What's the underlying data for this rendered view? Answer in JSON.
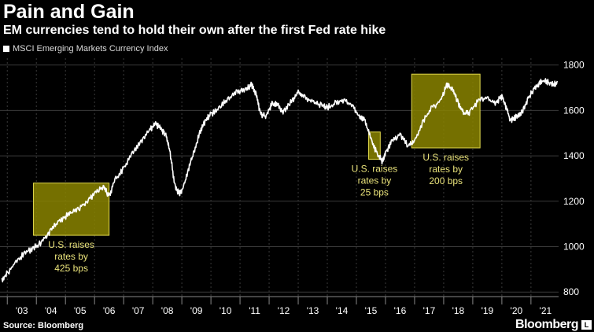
{
  "header": {
    "title": "Pain and Gain",
    "subtitle": "EM currencies tend to hold their own after the first Fed rate hike"
  },
  "footer": {
    "source": "Source: Bloomberg",
    "brand": "Bloomberg",
    "brand_badge": "L"
  },
  "colors": {
    "background": "#000000",
    "line": "#ffffff",
    "highlight_fill": "#8a8400",
    "highlight_border": "#e0d84a",
    "annotation_text": "#e9e27a",
    "grid": "#3a3a3a"
  },
  "chart_data": {
    "type": "line",
    "title": "Pain and Gain",
    "subtitle": "EM currencies tend to hold their own after the first Fed rate hike",
    "legend": [
      "MSCI Emerging Markets Currency Index"
    ],
    "legend_position": "top-left",
    "xlabel": "",
    "ylabel": "",
    "xlim": [
      2002.75,
      2021.95
    ],
    "ylim": [
      780,
      1830
    ],
    "y_ticks": [
      800,
      1000,
      1200,
      1400,
      1600,
      1800
    ],
    "y_axis_side": "right",
    "x_ticks": [
      {
        "label": "'03",
        "x": 2003.5
      },
      {
        "label": "'04",
        "x": 2004.5
      },
      {
        "label": "'05",
        "x": 2005.5
      },
      {
        "label": "'06",
        "x": 2006.5
      },
      {
        "label": "'07",
        "x": 2007.5
      },
      {
        "label": "'08",
        "x": 2008.5
      },
      {
        "label": "'09",
        "x": 2009.5
      },
      {
        "label": "'10",
        "x": 2010.5
      },
      {
        "label": "'11",
        "x": 2011.5
      },
      {
        "label": "'12",
        "x": 2012.5
      },
      {
        "label": "'13",
        "x": 2013.5
      },
      {
        "label": "'14",
        "x": 2014.5
      },
      {
        "label": "'15",
        "x": 2015.5
      },
      {
        "label": "'16",
        "x": 2016.5
      },
      {
        "label": "'17",
        "x": 2017.5
      },
      {
        "label": "'18",
        "x": 2018.5
      },
      {
        "label": "'19",
        "x": 2019.5
      },
      {
        "label": "'20",
        "x": 2020.5
      },
      {
        "label": "'21",
        "x": 2021.5
      }
    ],
    "grid": true,
    "series": [
      {
        "name": "MSCI Emerging Markets Currency Index",
        "x": [
          2002.8,
          2003.0,
          2003.3,
          2003.6,
          2003.9,
          2004.2,
          2004.5,
          2004.8,
          2005.1,
          2005.4,
          2005.7,
          2006.0,
          2006.3,
          2006.5,
          2006.7,
          2007.0,
          2007.3,
          2007.6,
          2007.9,
          2008.1,
          2008.3,
          2008.45,
          2008.6,
          2008.75,
          2008.9,
          2009.0,
          2009.2,
          2009.4,
          2009.6,
          2009.8,
          2010.0,
          2010.3,
          2010.6,
          2010.9,
          2011.2,
          2011.4,
          2011.55,
          2011.7,
          2011.9,
          2012.1,
          2012.3,
          2012.5,
          2012.8,
          2013.0,
          2013.2,
          2013.5,
          2013.8,
          2014.0,
          2014.3,
          2014.6,
          2014.9,
          2015.1,
          2015.3,
          2015.5,
          2015.7,
          2015.9,
          2016.0,
          2016.2,
          2016.5,
          2016.8,
          2017.0,
          2017.3,
          2017.6,
          2017.9,
          2018.1,
          2018.3,
          2018.5,
          2018.7,
          2018.9,
          2019.2,
          2019.5,
          2019.8,
          2020.0,
          2020.15,
          2020.3,
          2020.5,
          2020.7,
          2020.9,
          2021.1,
          2021.3,
          2021.5,
          2021.7,
          2021.9
        ],
        "values": [
          860,
          890,
          940,
          980,
          1000,
          1030,
          1080,
          1120,
          1150,
          1170,
          1200,
          1240,
          1270,
          1230,
          1300,
          1350,
          1420,
          1470,
          1520,
          1550,
          1520,
          1500,
          1420,
          1280,
          1240,
          1250,
          1330,
          1420,
          1500,
          1560,
          1590,
          1620,
          1660,
          1690,
          1700,
          1720,
          1680,
          1590,
          1580,
          1640,
          1630,
          1600,
          1650,
          1690,
          1670,
          1640,
          1630,
          1620,
          1640,
          1650,
          1620,
          1580,
          1560,
          1480,
          1420,
          1380,
          1420,
          1470,
          1500,
          1450,
          1470,
          1560,
          1620,
          1650,
          1720,
          1700,
          1640,
          1590,
          1600,
          1650,
          1660,
          1640,
          1670,
          1620,
          1560,
          1580,
          1600,
          1660,
          1700,
          1730,
          1740,
          1720,
          1730
        ]
      }
    ],
    "highlights": [
      {
        "x_range": [
          2003.9,
          2006.5
        ],
        "y_range": [
          1050,
          1280
        ],
        "label_lines": [
          "U.S. raises",
          "rates by",
          "425 bps"
        ]
      },
      {
        "x_range": [
          2015.42,
          2015.82
        ],
        "y_range": [
          1385,
          1505
        ],
        "label_lines": [
          "U.S. raises",
          "rates by",
          "25 bps"
        ]
      },
      {
        "x_range": [
          2016.9,
          2019.25
        ],
        "y_range": [
          1435,
          1760
        ],
        "label_lines": [
          "U.S. raises",
          "rates by",
          "200 bps"
        ]
      }
    ]
  }
}
